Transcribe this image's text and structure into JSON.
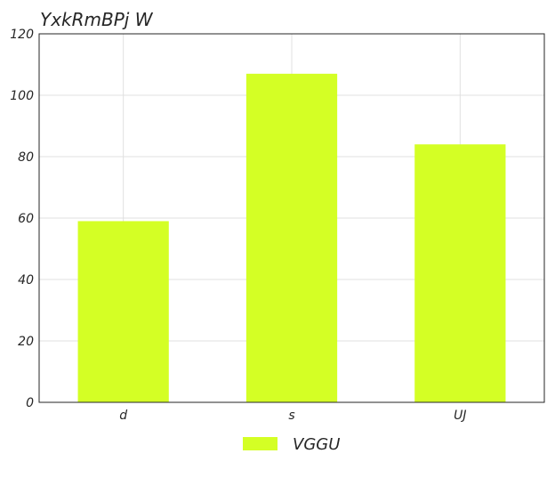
{
  "chart_data": {
    "type": "bar",
    "title": "YxkRmBPj  W",
    "categories": [
      "d",
      "s",
      "UJ"
    ],
    "series": [
      {
        "name": "VGGU",
        "values": [
          59,
          107,
          84
        ]
      }
    ],
    "ylim": [
      0,
      120
    ],
    "yticks": [
      0,
      20,
      40,
      60,
      80,
      100,
      120
    ],
    "xlabel": "",
    "ylabel": "",
    "grid": true,
    "legend_position": "bottom-center",
    "colors": {
      "bar": "#d4ff25",
      "grid": "#e0e0e0",
      "axis": "#262626",
      "text": "#262626"
    }
  }
}
